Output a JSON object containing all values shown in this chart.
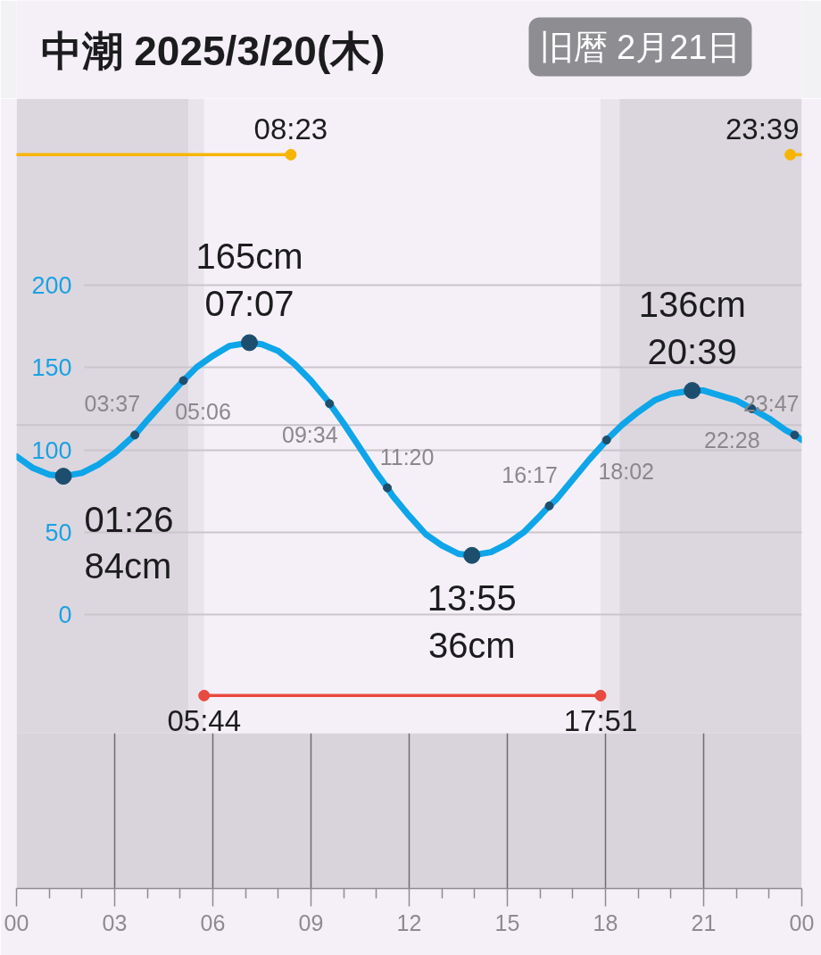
{
  "chart_data": {
    "type": "line",
    "title": "中潮 2025/3/20(木)",
    "subtitle": "旧暦 2月21日",
    "series": [
      {
        "color": "#0ea5e9",
        "x": [
          0,
          0.5,
          1,
          1.433,
          2,
          2.5,
          3,
          3.5,
          3.617,
          4,
          4.5,
          5,
          5.1,
          5.5,
          6,
          6.5,
          7.117,
          7.5,
          8,
          8.5,
          9,
          9.5,
          9.567,
          10,
          10.5,
          11,
          11.333,
          11.5,
          12,
          12.5,
          13,
          13.5,
          13.917,
          14.5,
          15,
          15.5,
          16,
          16.283,
          16.5,
          17,
          17.5,
          18,
          18.033,
          18.5,
          19,
          19.5,
          20,
          20.65,
          21,
          21.5,
          22,
          22.467,
          23,
          23.5,
          23.783,
          24
        ],
        "values": [
          96,
          89,
          85,
          84,
          86,
          91,
          98,
          107,
          109,
          118,
          129,
          140,
          142,
          150,
          157,
          163,
          165,
          164,
          160,
          152,
          142,
          130,
          128,
          116,
          101,
          86,
          77,
          72,
          60,
          49,
          42,
          37,
          36,
          38,
          43,
          50,
          60,
          66,
          70,
          82,
          94,
          105,
          106,
          115,
          123,
          130,
          134,
          136,
          136,
          133,
          130,
          125,
          119,
          112,
          109,
          106
        ]
      },
      {
        "type": "scatter",
        "color": "#1d4e6e",
        "marker": "circle",
        "x": [
          1.433,
          7.117,
          13.917,
          20.65
        ],
        "values": [
          84,
          165,
          36,
          136
        ],
        "value_labels": [
          "01:26\n84cm",
          "165cm\n07:07",
          "13:55\n36cm",
          "136cm\n20:39"
        ]
      },
      {
        "type": "scatter",
        "color": "#1d4e6e",
        "marker": "circle",
        "x": [
          3.617,
          5.1,
          9.567,
          11.333,
          16.283,
          18.033,
          22.467,
          23.783
        ],
        "values": [
          109,
          142,
          128,
          77,
          66,
          106,
          125,
          109
        ]
      },
      {
        "color": "#f7b500",
        "marker": "circle",
        "x": [
          0,
          8.383
        ],
        "values": [
          279,
          279
        ]
      },
      {
        "color": "#f7b500",
        "marker": "circle",
        "x": [
          23.65,
          24
        ],
        "values": [
          279,
          279
        ]
      },
      {
        "color": "#e94a3f",
        "marker": "circle",
        "x": [
          5.733,
          17.85
        ],
        "values": [
          -49,
          -49
        ]
      }
    ],
    "xlim": [
      0,
      24
    ],
    "xticks": [
      {
        "value": 0,
        "label": "00"
      },
      {
        "value": 3,
        "label": "03"
      },
      {
        "value": 6,
        "label": "06"
      },
      {
        "value": 9,
        "label": "09"
      },
      12,
      15,
      18,
      21,
      {
        "value": 24,
        "label": "00"
      }
    ],
    "ylim": [
      -166,
      313
    ],
    "yticks": [
      0,
      50,
      100,
      150,
      200
    ],
    "grid": "y",
    "ref_lines": [
      {
        "axis": "y",
        "value": 115,
        "color": "#c9c5cb"
      },
      {
        "axis": "x",
        "value": 3,
        "color": "#6f6b72"
      },
      {
        "axis": "x",
        "value": 6,
        "color": "#6f6b72"
      },
      {
        "axis": "x",
        "value": 9,
        "color": "#6f6b72"
      },
      {
        "axis": "x",
        "value": 12,
        "color": "#6f6b72"
      },
      {
        "axis": "x",
        "value": 15,
        "color": "#6f6b72"
      },
      {
        "axis": "x",
        "value": 18,
        "color": "#6f6b72"
      },
      {
        "axis": "x",
        "value": 21,
        "color": "#6f6b72"
      }
    ],
    "bands": [
      {
        "axis": "x",
        "from": 0,
        "to": 5.25,
        "color": "#dcd7de"
      },
      {
        "axis": "x",
        "from": 5.25,
        "to": 5.733,
        "color": "#e9e4eb"
      },
      {
        "axis": "x",
        "from": 17.85,
        "to": 18.43,
        "color": "#e9e4eb"
      },
      {
        "axis": "x",
        "from": 18.43,
        "to": 24,
        "color": "#dcd7de"
      },
      {
        "axis": "y",
        "from": -166,
        "to": -72,
        "color": "#d9d4db"
      }
    ],
    "annotations": [
      {
        "text": "08:23",
        "x": 8.383,
        "y": 279
      },
      {
        "text": "23:39",
        "x": 23.65,
        "y": 279
      },
      {
        "text": "05:44",
        "x": 5.733,
        "y": -49
      },
      {
        "text": "17:51",
        "x": 17.85,
        "y": -49
      },
      {
        "text": "03:37",
        "x": 3.617,
        "y": 109
      },
      {
        "text": "05:06",
        "x": 5.1,
        "y": 142
      },
      {
        "text": "09:34",
        "x": 9.567,
        "y": 128
      },
      {
        "text": "11:20",
        "x": 11.333,
        "y": 77
      },
      {
        "text": "16:17",
        "x": 16.283,
        "y": 66
      },
      {
        "text": "18:02",
        "x": 18.033,
        "y": 106
      },
      {
        "text": "22:28",
        "x": 22.467,
        "y": 125
      },
      {
        "text": "23:47",
        "x": 23.783,
        "y": 109
      }
    ]
  }
}
